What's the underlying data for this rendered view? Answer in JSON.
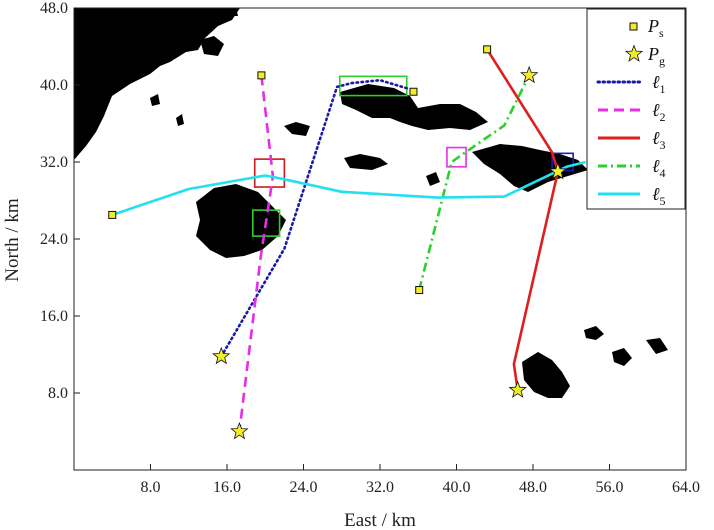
{
  "chart_data": {
    "type": "line",
    "xlabel": "East / km",
    "ylabel": "North / km",
    "xlim": [
      0,
      64
    ],
    "ylim": [
      0,
      48
    ],
    "xticks": [
      "8.0",
      "16.0",
      "24.0",
      "32.0",
      "40.0",
      "48.0",
      "56.0",
      "64.0"
    ],
    "yticks": [
      "8.0",
      "16.0",
      "24.0",
      "32.0",
      "40.0",
      "48.0"
    ],
    "grid": false,
    "legend_position": "top-right",
    "land_color": "#000000",
    "legend": {
      "ps": {
        "main": "P",
        "sub": "s"
      },
      "pg": {
        "main": "P",
        "sub": "g"
      },
      "l1": {
        "main": "ℓ",
        "sub": "1"
      },
      "l2": {
        "main": "ℓ",
        "sub": "2"
      },
      "l3": {
        "main": "ℓ",
        "sub": "3"
      },
      "l4": {
        "main": "ℓ",
        "sub": "4"
      },
      "l5": {
        "main": "ℓ",
        "sub": "5"
      }
    },
    "series": [
      {
        "id": "l1",
        "color": "#1a1aa6",
        "dash": "dotted",
        "points": [
          [
            15.4,
            11.8
          ],
          [
            22.0,
            23.0
          ],
          [
            27.5,
            39.8
          ],
          [
            29.0,
            40.2
          ],
          [
            32.0,
            40.5
          ],
          [
            35.0,
            39.6
          ]
        ],
        "ps": [
          35.5,
          39.3
        ],
        "pg": [
          15.4,
          11.8
        ],
        "box": {
          "x": [
            27.8,
            34.8
          ],
          "y": [
            38.9,
            40.9
          ],
          "color": "#2ad12a"
        }
      },
      {
        "id": "l2",
        "color": "#e62ee6",
        "dash": "dashed",
        "points": [
          [
            19.6,
            41.0
          ],
          [
            20.8,
            30.5
          ],
          [
            19.5,
            22.0
          ],
          [
            17.3,
            4.0
          ]
        ],
        "ps": [
          19.6,
          41.0
        ],
        "pg": [
          17.3,
          4.0
        ],
        "box": {
          "x": [
            18.9,
            22.0
          ],
          "y": [
            29.4,
            32.3
          ],
          "color": "#cc1a1a"
        }
      },
      {
        "id": "l3",
        "color": "#e01e1e",
        "dash": "solid",
        "points": [
          [
            43.2,
            43.7
          ],
          [
            50.0,
            33.0
          ],
          [
            50.6,
            31.0
          ],
          [
            46.0,
            11.0
          ],
          [
            46.4,
            8.3
          ]
        ],
        "ps": [
          43.2,
          43.7
        ],
        "pg": [
          46.4,
          8.3
        ],
        "box": {
          "x": [
            50.0,
            52.2
          ],
          "y": [
            31.1,
            32.9
          ],
          "color": "#1a1abf"
        }
      },
      {
        "id": "l4",
        "color": "#2ad12a",
        "dash": "dashdot",
        "points": [
          [
            36.1,
            18.7
          ],
          [
            39.5,
            32.0
          ],
          [
            40.2,
            32.5
          ],
          [
            45.0,
            35.8
          ],
          [
            47.6,
            41.0
          ]
        ],
        "ps": [
          36.1,
          18.7
        ],
        "pg": [
          47.6,
          41.0
        ],
        "box": {
          "x": [
            39.0,
            41.0
          ],
          "y": [
            31.5,
            33.5
          ],
          "color": "#e62ee6"
        }
      },
      {
        "id": "l5",
        "color": "#22e0f0",
        "dash": "solid",
        "points": [
          [
            4.0,
            26.5
          ],
          [
            12.0,
            29.2
          ],
          [
            20.0,
            30.6
          ],
          [
            22.0,
            30.2
          ],
          [
            28.0,
            28.9
          ],
          [
            38.0,
            28.3
          ],
          [
            45.0,
            28.4
          ],
          [
            51.5,
            31.5
          ],
          [
            53.5,
            32.0
          ]
        ],
        "ps": [
          4.0,
          26.5
        ],
        "pg": [
          50.6,
          31.0
        ],
        "box": {
          "x": [
            18.7,
            21.5
          ],
          "y": [
            24.3,
            27.0
          ],
          "color": "#2ad12a"
        }
      }
    ]
  }
}
